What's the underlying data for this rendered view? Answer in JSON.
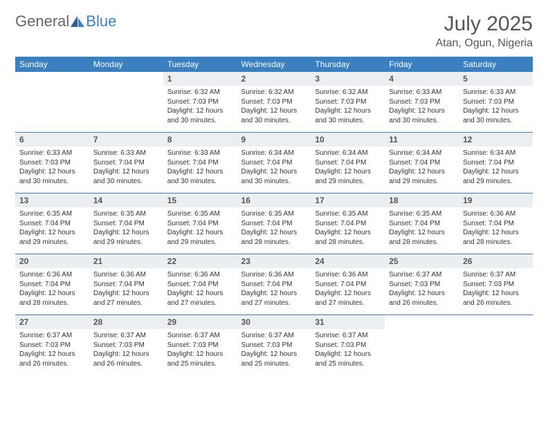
{
  "brand": {
    "part1": "General",
    "part2": "Blue"
  },
  "title": {
    "month": "July 2025",
    "location": "Atan, Ogun, Nigeria"
  },
  "colors": {
    "header_bg": "#3a7fc0",
    "header_text": "#ffffff",
    "daynum_bg": "#eceff1",
    "row_border": "#3a7fc0",
    "logo_accent": "#3b82c4",
    "text": "#333333",
    "title_text": "#555555",
    "background": "#ffffff"
  },
  "typography": {
    "title_fontsize": 30,
    "location_fontsize": 16,
    "header_fontsize": 12,
    "daynum_fontsize": 12,
    "body_fontsize": 10,
    "font_family": "Arial"
  },
  "calendar": {
    "columns": [
      "Sunday",
      "Monday",
      "Tuesday",
      "Wednesday",
      "Thursday",
      "Friday",
      "Saturday"
    ],
    "weeks": [
      [
        null,
        null,
        {
          "n": "1",
          "sr": "6:32 AM",
          "ss": "7:03 PM",
          "dl": "12 hours and 30 minutes."
        },
        {
          "n": "2",
          "sr": "6:32 AM",
          "ss": "7:03 PM",
          "dl": "12 hours and 30 minutes."
        },
        {
          "n": "3",
          "sr": "6:32 AM",
          "ss": "7:03 PM",
          "dl": "12 hours and 30 minutes."
        },
        {
          "n": "4",
          "sr": "6:33 AM",
          "ss": "7:03 PM",
          "dl": "12 hours and 30 minutes."
        },
        {
          "n": "5",
          "sr": "6:33 AM",
          "ss": "7:03 PM",
          "dl": "12 hours and 30 minutes."
        }
      ],
      [
        {
          "n": "6",
          "sr": "6:33 AM",
          "ss": "7:03 PM",
          "dl": "12 hours and 30 minutes."
        },
        {
          "n": "7",
          "sr": "6:33 AM",
          "ss": "7:04 PM",
          "dl": "12 hours and 30 minutes."
        },
        {
          "n": "8",
          "sr": "6:33 AM",
          "ss": "7:04 PM",
          "dl": "12 hours and 30 minutes."
        },
        {
          "n": "9",
          "sr": "6:34 AM",
          "ss": "7:04 PM",
          "dl": "12 hours and 30 minutes."
        },
        {
          "n": "10",
          "sr": "6:34 AM",
          "ss": "7:04 PM",
          "dl": "12 hours and 29 minutes."
        },
        {
          "n": "11",
          "sr": "6:34 AM",
          "ss": "7:04 PM",
          "dl": "12 hours and 29 minutes."
        },
        {
          "n": "12",
          "sr": "6:34 AM",
          "ss": "7:04 PM",
          "dl": "12 hours and 29 minutes."
        }
      ],
      [
        {
          "n": "13",
          "sr": "6:35 AM",
          "ss": "7:04 PM",
          "dl": "12 hours and 29 minutes."
        },
        {
          "n": "14",
          "sr": "6:35 AM",
          "ss": "7:04 PM",
          "dl": "12 hours and 29 minutes."
        },
        {
          "n": "15",
          "sr": "6:35 AM",
          "ss": "7:04 PM",
          "dl": "12 hours and 29 minutes."
        },
        {
          "n": "16",
          "sr": "6:35 AM",
          "ss": "7:04 PM",
          "dl": "12 hours and 28 minutes."
        },
        {
          "n": "17",
          "sr": "6:35 AM",
          "ss": "7:04 PM",
          "dl": "12 hours and 28 minutes."
        },
        {
          "n": "18",
          "sr": "6:35 AM",
          "ss": "7:04 PM",
          "dl": "12 hours and 28 minutes."
        },
        {
          "n": "19",
          "sr": "6:36 AM",
          "ss": "7:04 PM",
          "dl": "12 hours and 28 minutes."
        }
      ],
      [
        {
          "n": "20",
          "sr": "6:36 AM",
          "ss": "7:04 PM",
          "dl": "12 hours and 28 minutes."
        },
        {
          "n": "21",
          "sr": "6:36 AM",
          "ss": "7:04 PM",
          "dl": "12 hours and 27 minutes."
        },
        {
          "n": "22",
          "sr": "6:36 AM",
          "ss": "7:04 PM",
          "dl": "12 hours and 27 minutes."
        },
        {
          "n": "23",
          "sr": "6:36 AM",
          "ss": "7:04 PM",
          "dl": "12 hours and 27 minutes."
        },
        {
          "n": "24",
          "sr": "6:36 AM",
          "ss": "7:04 PM",
          "dl": "12 hours and 27 minutes."
        },
        {
          "n": "25",
          "sr": "6:37 AM",
          "ss": "7:03 PM",
          "dl": "12 hours and 26 minutes."
        },
        {
          "n": "26",
          "sr": "6:37 AM",
          "ss": "7:03 PM",
          "dl": "12 hours and 26 minutes."
        }
      ],
      [
        {
          "n": "27",
          "sr": "6:37 AM",
          "ss": "7:03 PM",
          "dl": "12 hours and 26 minutes."
        },
        {
          "n": "28",
          "sr": "6:37 AM",
          "ss": "7:03 PM",
          "dl": "12 hours and 26 minutes."
        },
        {
          "n": "29",
          "sr": "6:37 AM",
          "ss": "7:03 PM",
          "dl": "12 hours and 25 minutes."
        },
        {
          "n": "30",
          "sr": "6:37 AM",
          "ss": "7:03 PM",
          "dl": "12 hours and 25 minutes."
        },
        {
          "n": "31",
          "sr": "6:37 AM",
          "ss": "7:03 PM",
          "dl": "12 hours and 25 minutes."
        },
        null,
        null
      ]
    ]
  },
  "labels": {
    "sunrise": "Sunrise:",
    "sunset": "Sunset:",
    "daylight": "Daylight:"
  }
}
